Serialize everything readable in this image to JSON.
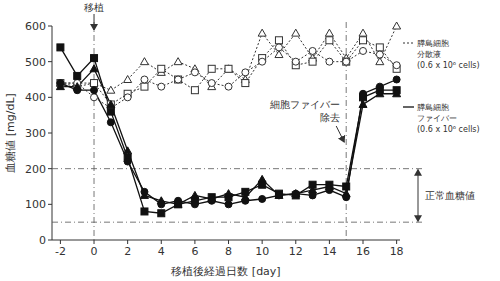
{
  "chart_data": {
    "type": "line",
    "x_label": "移植後経過日数 [day]",
    "y_label": "血糖値 [mg/dL]",
    "x": [
      -2,
      -1,
      0,
      1,
      2,
      3,
      4,
      5,
      6,
      7,
      8,
      9,
      10,
      11,
      12,
      13,
      14,
      15,
      16,
      17,
      18
    ],
    "xlim": [
      -2.5,
      18.2
    ],
    "xticks": [
      -2,
      0,
      2,
      4,
      6,
      8,
      10,
      12,
      14,
      16,
      18
    ],
    "ylim": [
      0,
      600
    ],
    "yticks": [
      0,
      100,
      200,
      300,
      400,
      500,
      600
    ],
    "grid": false,
    "legend": "right",
    "series": [
      {
        "name": "膵島細胞\n分散液\n(0.6 x 10⁶ cells)",
        "color": "#333333",
        "line_style": "dotted",
        "marker": "open-triangle",
        "values": [
          440,
          440,
          440,
          420,
          450,
          500,
          470,
          500,
          480,
          430,
          480,
          450,
          580,
          520,
          580,
          510,
          580,
          510,
          580,
          500,
          600
        ]
      },
      {
        "color": "#333333",
        "line_style": "dotted",
        "marker": "open-square",
        "values": [
          440,
          430,
          440,
          380,
          410,
          430,
          480,
          450,
          420,
          480,
          480,
          440,
          510,
          560,
          490,
          500,
          560,
          500,
          560,
          540,
          480
        ]
      },
      {
        "color": "#333333",
        "line_style": "dotted",
        "marker": "open-circle",
        "values": [
          440,
          440,
          400,
          370,
          400,
          450,
          430,
          450,
          470,
          440,
          430,
          470,
          500,
          540,
          500,
          530,
          500,
          500,
          530,
          520,
          490
        ]
      },
      {
        "name": "膵島細胞\nファイバー\n(0.6 x 10⁶ cells)",
        "color": "#111111",
        "line_style": "solid",
        "marker": "square",
        "values": [
          540,
          460,
          510,
          360,
          230,
          80,
          75,
          100,
          110,
          120,
          120,
          135,
          155,
          130,
          125,
          155,
          155,
          150,
          400,
          420,
          420
        ]
      },
      {
        "color": "#111111",
        "line_style": "solid",
        "marker": "triangle",
        "values": [
          430,
          430,
          480,
          380,
          250,
          125,
          110,
          100,
          125,
          115,
          130,
          120,
          170,
          125,
          130,
          140,
          150,
          130,
          380,
          410,
          410
        ]
      },
      {
        "color": "#111111",
        "line_style": "solid",
        "marker": "circle",
        "values": [
          440,
          420,
          420,
          330,
          220,
          135,
          100,
          110,
          100,
          110,
          100,
          110,
          115,
          125,
          130,
          125,
          140,
          120,
          410,
          430,
          450
        ]
      }
    ],
    "annotations": [
      {
        "text": "移植",
        "x": 0
      },
      {
        "text": "細胞ファイバー\n除去",
        "x": 15
      },
      {
        "text": "正常血糖値",
        "y": [
          50,
          200
        ]
      }
    ]
  }
}
